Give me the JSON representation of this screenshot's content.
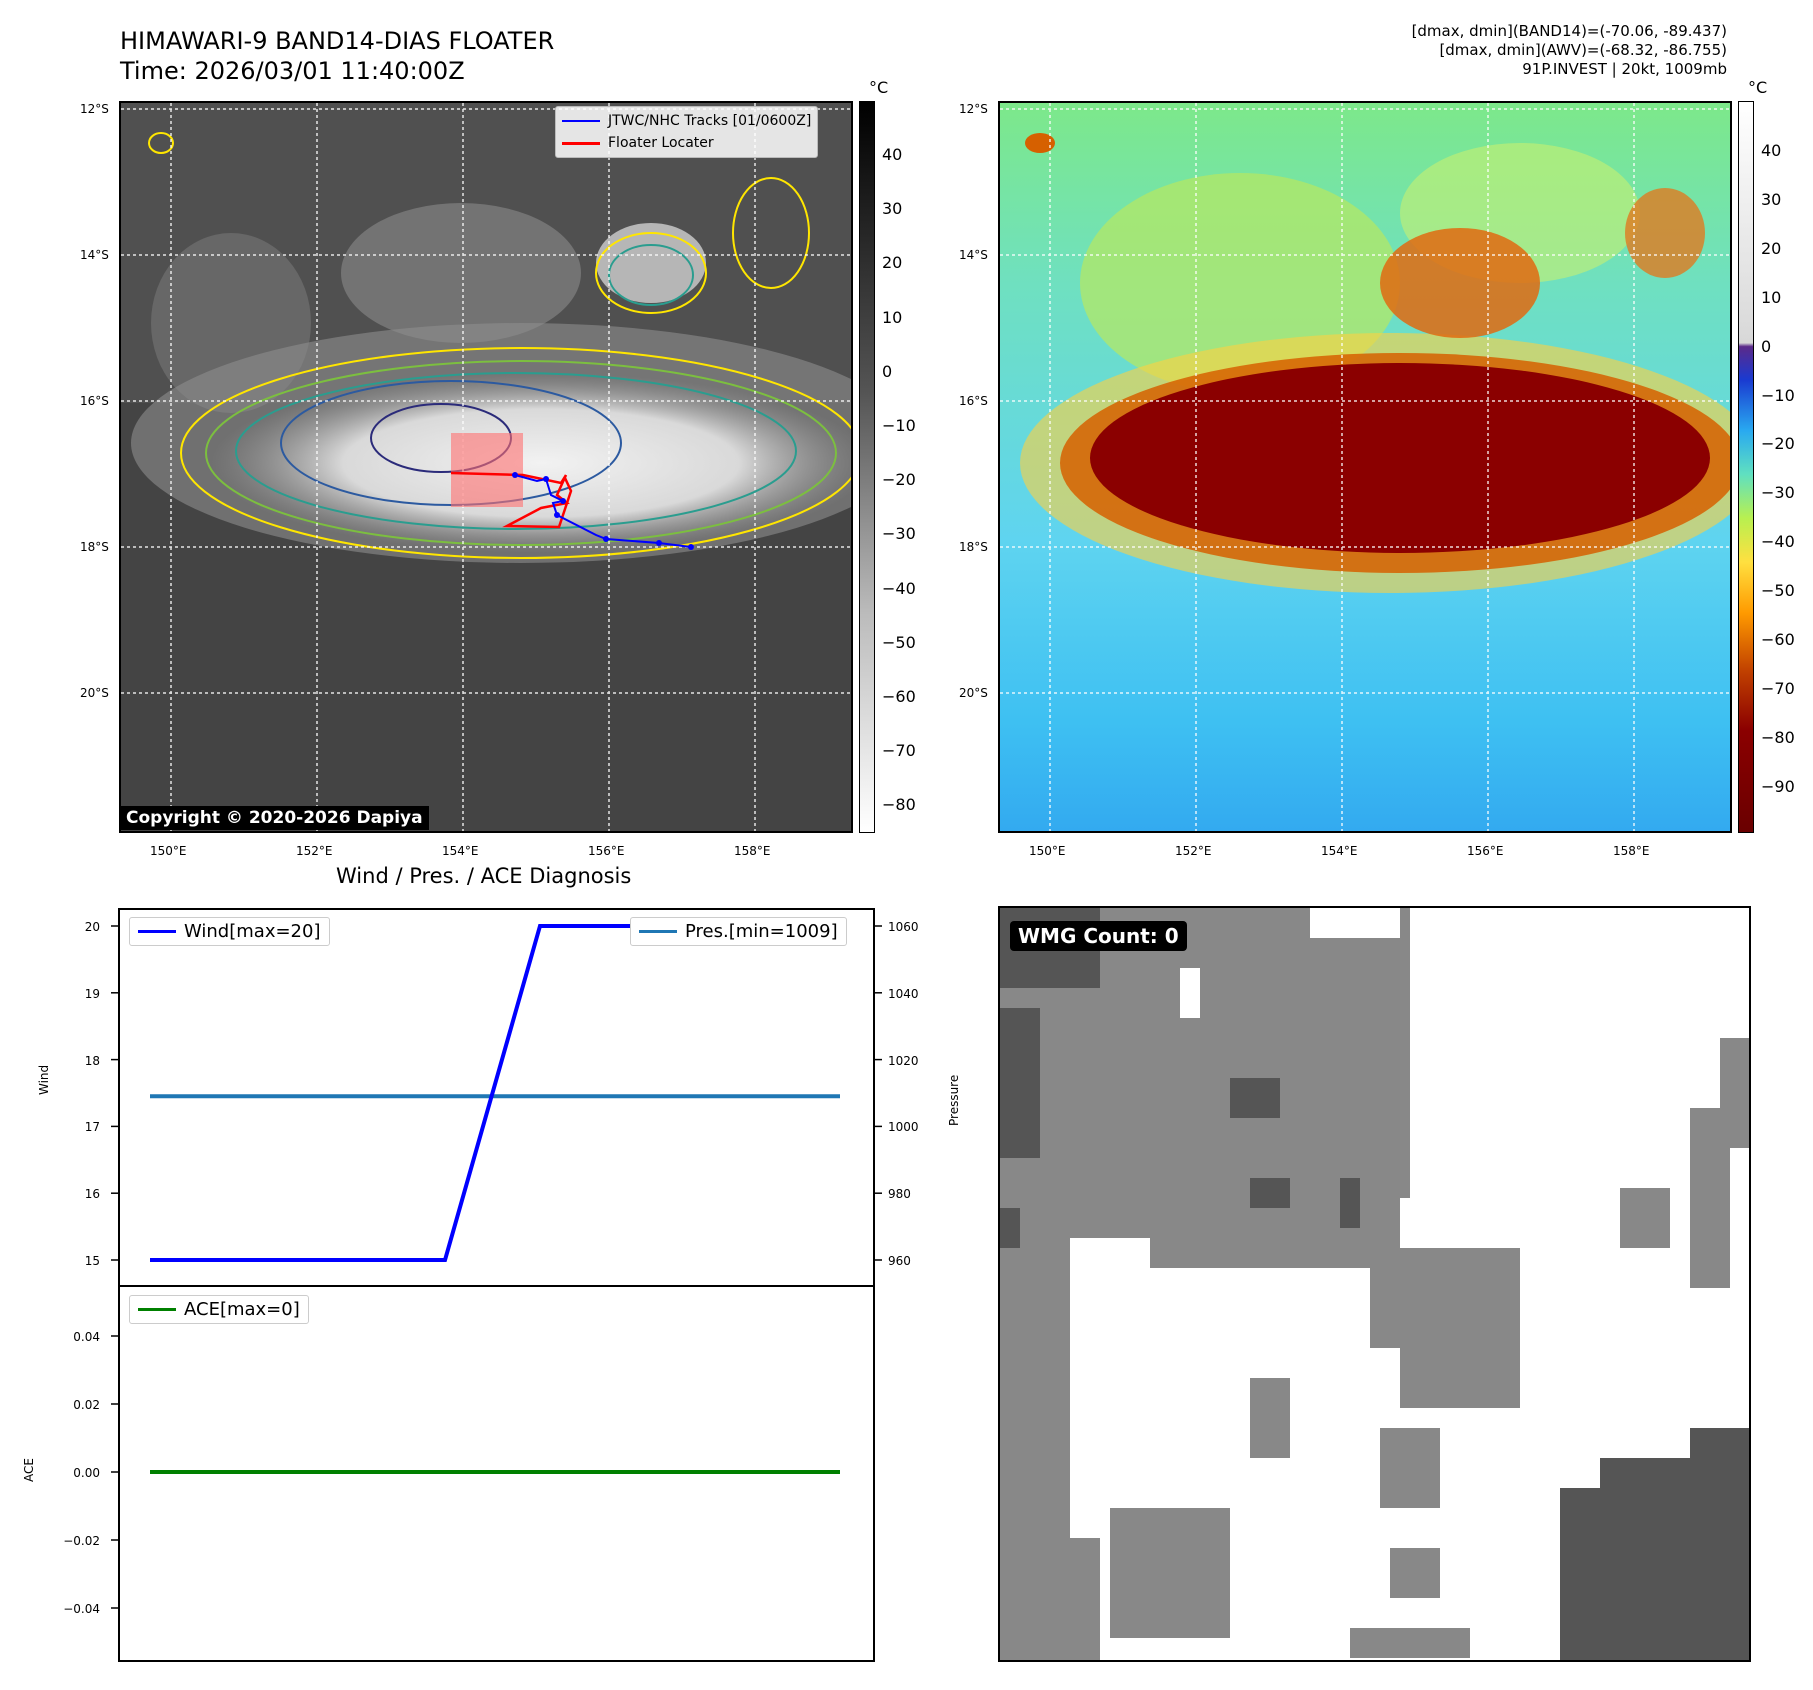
{
  "header": {
    "title_line1": "HIMAWARI-9 BAND14-DIAS FLOATER",
    "title_line2": "Time: 2026/03/01 11:40:00Z",
    "info_line1": "[dmax, dmin](BAND14)=(-70.06, -89.437)",
    "info_line2": "[dmax, dmin](AWV)=(-68.32, -86.755)",
    "info_line3": "91P.INVEST | 20kt, 1009mb"
  },
  "map": {
    "lat_ticks": [
      "12°S",
      "14°S",
      "16°S",
      "18°S",
      "20°S"
    ],
    "lon_ticks": [
      "150°E",
      "152°E",
      "154°E",
      "156°E",
      "158°E"
    ],
    "copyright": "Copyright © 2020-2026 Dapiya",
    "legend": {
      "tracks": "JTWC/NHC Tracks [01/0600Z]",
      "floater": "Floater Locater"
    },
    "colors": {
      "track": "#0000ff",
      "floater": "#ff0000"
    }
  },
  "colorbar_gray": {
    "unit": "°C",
    "ticks": [
      "40",
      "30",
      "20",
      "10",
      "0",
      "−10",
      "−20",
      "−30",
      "−40",
      "−50",
      "−60",
      "−70",
      "−80"
    ]
  },
  "colorbar_color": {
    "unit": "°C",
    "ticks": [
      "40",
      "30",
      "20",
      "10",
      "0",
      "−10",
      "−20",
      "−30",
      "−40",
      "−50",
      "−60",
      "−70",
      "−80",
      "−90"
    ]
  },
  "diagnosis": {
    "title": "Wind / Pres. / ACE Diagnosis",
    "wind_legend": "Wind[max=20]",
    "pres_legend": "Pres.[min=1009]",
    "ace_legend": "ACE[max=0]",
    "wind_axis_label": "Wind",
    "pres_axis_label": "Pressure",
    "ace_axis_label": "ACE",
    "wind_ticks": [
      "20",
      "19",
      "18",
      "17",
      "16",
      "15"
    ],
    "pres_ticks": [
      "1060",
      "1040",
      "1020",
      "1000",
      "980",
      "960"
    ],
    "ace_ticks": [
      "0.04",
      "0.02",
      "0.00",
      "−0.02",
      "−0.04"
    ],
    "colors": {
      "wind": "#0000ff",
      "pres": "#1f77b4",
      "ace": "#008000"
    }
  },
  "wmg": {
    "label": "WMG Count: 0"
  },
  "chart_data": [
    {
      "type": "line",
      "title": "Wind / Pres. / ACE Diagnosis",
      "series": [
        {
          "name": "Wind[max=20]",
          "axis": "Wind",
          "x": [
            0,
            1,
            2,
            3,
            4,
            5,
            6,
            7
          ],
          "values": [
            15,
            15,
            15,
            15,
            20,
            20,
            20,
            20
          ]
        },
        {
          "name": "Pres.[min=1009]",
          "axis": "Pressure",
          "x": [
            0,
            1,
            2,
            3,
            4,
            5,
            6,
            7
          ],
          "values": [
            1009,
            1009,
            1009,
            1009,
            1009,
            1009,
            1009,
            1009
          ]
        }
      ],
      "ylim_wind": [
        15,
        20
      ],
      "ylim_pres": [
        955,
        1065
      ]
    },
    {
      "type": "line",
      "series": [
        {
          "name": "ACE[max=0]",
          "axis": "ACE",
          "x": [
            0,
            1,
            2,
            3,
            4,
            5,
            6,
            7
          ],
          "values": [
            0,
            0,
            0,
            0,
            0,
            0,
            0,
            0
          ]
        }
      ],
      "ylim": [
        -0.055,
        0.055
      ]
    }
  ]
}
